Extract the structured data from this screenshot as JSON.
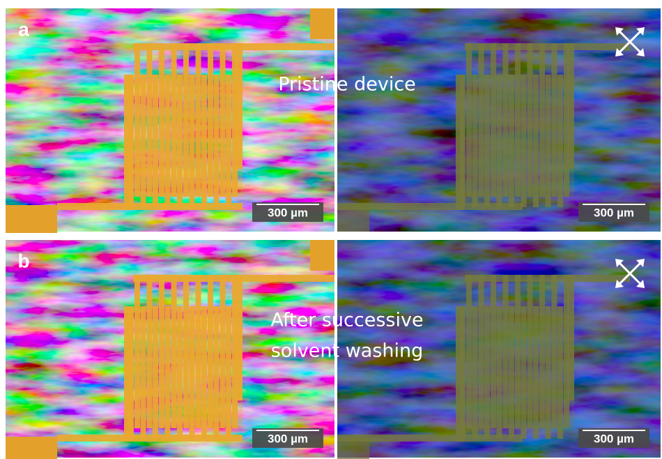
{
  "panels": [
    {
      "label": "a",
      "caption": [
        "Pristine device"
      ],
      "scale_bars": [
        "300 µm",
        "300 µm"
      ]
    },
    {
      "label": "b",
      "caption": [
        "After successive",
        "solvent washing"
      ],
      "scale_bars": [
        "300 µm",
        "300 µm"
      ]
    }
  ]
}
